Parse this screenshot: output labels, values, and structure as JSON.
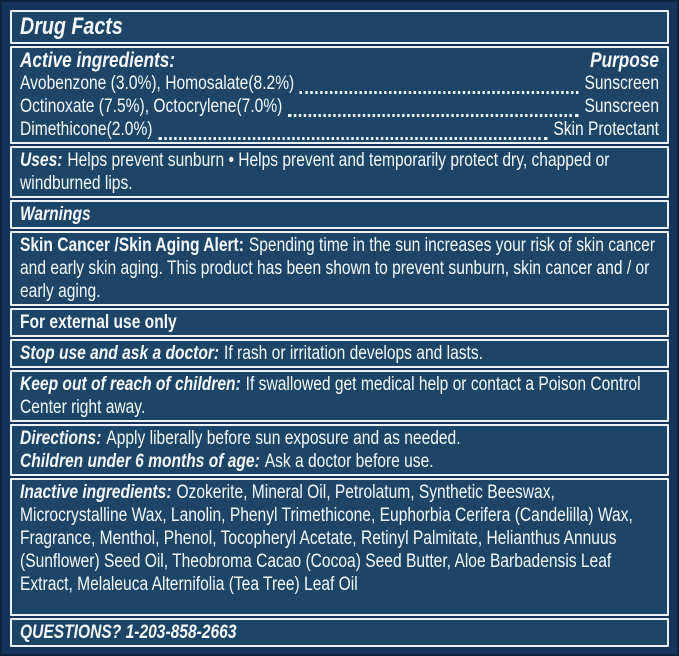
{
  "colors": {
    "panel_bg": "#1e4568",
    "frame_bg": "#16335b",
    "outer_line": "#0d2340",
    "rule_white": "#edf2f6",
    "text": "#f5f8fb"
  },
  "title": "Drug Facts",
  "active": {
    "heading": "Active ingredients:",
    "purpose_heading": "Purpose",
    "rows": [
      {
        "name": "Avobenzone (3.0%), Homosalate(8.2%)",
        "purpose": "Sunscreen"
      },
      {
        "name": "Octinoxate (7.5%), Octocrylene(7.0%)",
        "purpose": "Sunscreen"
      },
      {
        "name": "Dimethicone(2.0%)",
        "purpose": "Skin Protectant"
      }
    ]
  },
  "uses": {
    "label": "Uses:",
    "text": "Helps prevent sunburn • Helps prevent and temporarily protect dry, chapped or windburned lips."
  },
  "warnings": {
    "heading": "Warnings"
  },
  "skin_alert": {
    "label": "Skin Cancer /Skin Aging Alert:",
    "text": "Spending time in the sun increases your risk of skin cancer and early skin aging. This product has been shown to prevent sunburn, skin cancer and / or early aging."
  },
  "external_use": {
    "text": "For external use only"
  },
  "stop_use": {
    "label": "Stop use and ask a doctor:",
    "text": "If rash or irritation develops and lasts."
  },
  "keep_out": {
    "label": "Keep out of reach of children:",
    "text": "If swallowed get medical help or contact a Poison Control Center right away."
  },
  "directions": {
    "label": "Directions:",
    "text": "Apply liberally before sun exposure and as needed."
  },
  "children": {
    "label": "Children under 6 months of age:",
    "text": "Ask a doctor before use."
  },
  "inactive": {
    "label": "Inactive ingredients:",
    "text": "Ozokerite, Mineral Oil, Petrolatum, Synthetic Beeswax, Microcrystalline Wax, Lanolin, Phenyl Trimethicone, Euphorbia Cerifera (Candelilla) Wax, Fragrance, Menthol, Phenol, Tocopheryl Acetate, Retinyl Palmitate, Helianthus Annuus (Sunflower) Seed Oil, Theobroma Cacao (Cocoa) Seed Butter, Aloe Barbadensis Leaf Extract, Melaleuca Alternifolia (Tea Tree) Leaf Oil"
  },
  "questions": {
    "text": "QUESTIONS? 1-203-858-2663"
  }
}
